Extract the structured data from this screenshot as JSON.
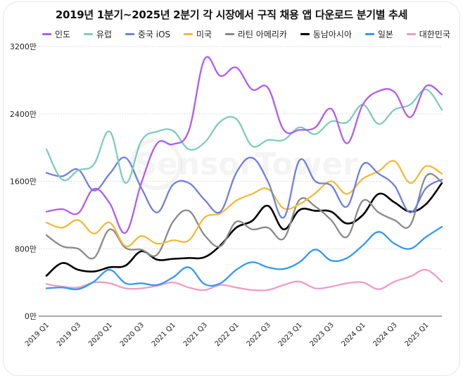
{
  "chart_data": {
    "type": "line",
    "title": "2019년 1분기~2025년 2분기 각 시장에서 구직 채용 앱 다운로드 분기별 추세",
    "xlabel": "",
    "ylabel": "",
    "ylim": [
      0,
      3200
    ],
    "yticks": [
      "0만",
      "800만",
      "1600만",
      "2400만",
      "3200만"
    ],
    "ytick_values": [
      0,
      800,
      1600,
      2400,
      3200
    ],
    "grid": true,
    "legend": "top",
    "watermark": "SensorTower",
    "x": [
      "2019 Q1",
      "2019 Q2",
      "2019 Q3",
      "2019 Q4",
      "2020 Q1",
      "2020 Q2",
      "2020 Q3",
      "2020 Q4",
      "2021 Q1",
      "2021 Q2",
      "2021 Q3",
      "2021 Q4",
      "2022 Q1",
      "2022 Q2",
      "2022 Q3",
      "2022 Q4",
      "2023 Q1",
      "2023 Q2",
      "2023 Q3",
      "2023 Q4",
      "2024 Q1",
      "2024 Q2",
      "2024 Q3",
      "2024 Q4",
      "2025 Q1",
      "2025 Q2"
    ],
    "xtick_labels": [
      "2019 Q1",
      "2019 Q3",
      "2020 Q1",
      "2020 Q3",
      "2021 Q1",
      "2021 Q3",
      "2022 Q1",
      "2022 Q3",
      "2023 Q1",
      "2023 Q3",
      "2024 Q1",
      "2024 Q3",
      "2025 Q1"
    ],
    "series": [
      {
        "name": "인도",
        "color": "#b05cf0",
        "values": [
          1240,
          1270,
          1220,
          1510,
          1340,
          990,
          1580,
          2050,
          2040,
          2200,
          3050,
          2850,
          2950,
          2690,
          2710,
          2210,
          2210,
          2240,
          2460,
          2050,
          2510,
          2670,
          2660,
          2360,
          2730,
          2630
        ]
      },
      {
        "name": "유럽",
        "color": "#7ecdb8",
        "values": [
          1980,
          1620,
          1730,
          1800,
          2190,
          1580,
          2080,
          2190,
          2200,
          1980,
          2060,
          2310,
          2340,
          2020,
          2090,
          2090,
          2240,
          2160,
          2310,
          2300,
          2510,
          2280,
          2450,
          2510,
          2690,
          2450
        ]
      },
      {
        "name": "중국 iOS",
        "color": "#6f7fdc",
        "values": [
          1700,
          1660,
          1740,
          1490,
          1690,
          1880,
          1520,
          1230,
          1560,
          1580,
          1380,
          1240,
          1700,
          1880,
          1600,
          1170,
          1850,
          1600,
          1550,
          1300,
          1800,
          1690,
          1550,
          1230,
          1520,
          1620
        ]
      },
      {
        "name": "미국",
        "color": "#f2bb38",
        "values": [
          1110,
          1050,
          1140,
          980,
          1110,
          830,
          950,
          860,
          900,
          900,
          1170,
          1220,
          1370,
          1450,
          1510,
          1280,
          1330,
          1460,
          1600,
          1450,
          1630,
          1720,
          1840,
          1580,
          1780,
          1690
        ]
      },
      {
        "name": "라틴 아메리카",
        "color": "#8a8a8a",
        "values": [
          960,
          830,
          800,
          690,
          1030,
          810,
          790,
          730,
          1120,
          1250,
          960,
          830,
          1120,
          1030,
          1050,
          920,
          1380,
          1300,
          1140,
          940,
          1370,
          1230,
          1140,
          1080,
          1660,
          1590
        ]
      },
      {
        "name": "동남아시아",
        "color": "#000000",
        "values": [
          480,
          630,
          550,
          530,
          580,
          600,
          770,
          670,
          680,
          690,
          700,
          840,
          1050,
          1130,
          1310,
          1030,
          1260,
          1250,
          1240,
          1100,
          1200,
          1450,
          1350,
          1240,
          1330,
          1580
        ]
      },
      {
        "name": "일본",
        "color": "#3399f0",
        "values": [
          330,
          340,
          320,
          410,
          550,
          390,
          390,
          370,
          460,
          580,
          380,
          390,
          550,
          640,
          580,
          560,
          640,
          790,
          660,
          690,
          840,
          1000,
          860,
          800,
          940,
          1060
        ]
      },
      {
        "name": "대한민국",
        "color": "#f29ac8",
        "values": [
          380,
          350,
          340,
          400,
          390,
          330,
          330,
          360,
          400,
          340,
          310,
          370,
          340,
          310,
          310,
          370,
          410,
          330,
          350,
          390,
          400,
          320,
          410,
          470,
          550,
          410
        ]
      }
    ]
  }
}
